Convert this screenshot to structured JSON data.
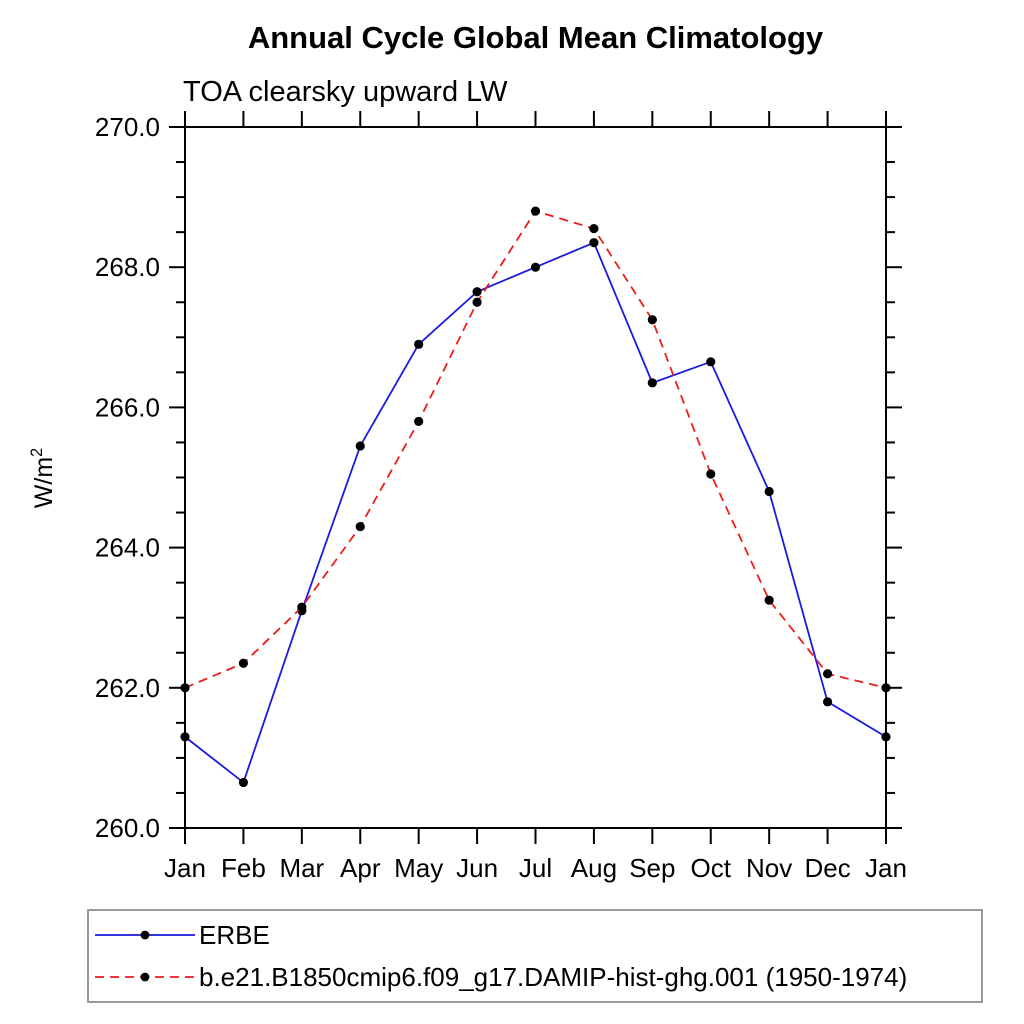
{
  "chart_data": {
    "type": "line",
    "title": "Annual Cycle Global Mean Climatology",
    "subtitle": "TOA clearsky upward LW",
    "ylabel": "W/m²",
    "xlabel": "",
    "x_tick_labels": [
      "Jan",
      "Feb",
      "Mar",
      "Apr",
      "May",
      "Jun",
      "Jul",
      "Aug",
      "Sep",
      "Oct",
      "Nov",
      "Dec",
      "Jan"
    ],
    "ylim": [
      260.0,
      270.0
    ],
    "y_major_ticks": [
      260.0,
      262.0,
      264.0,
      266.0,
      268.0,
      270.0
    ],
    "y_tick_labels": [
      "260.0",
      "262.0",
      "264.0",
      "266.0",
      "268.0",
      "270.0"
    ],
    "y_minor_step": 0.5,
    "grid": false,
    "frame_color": "#000000",
    "legend_position": "bottom-left-box",
    "legend_border_color": "#999999",
    "marker_color": "#000000",
    "series": [
      {
        "name": "ERBE",
        "color": "#1a1ae0",
        "line_style": "solid",
        "marker": "filled-circle",
        "values": [
          261.3,
          260.65,
          263.1,
          265.45,
          266.9,
          267.65,
          268.0,
          268.35,
          266.35,
          266.65,
          264.8,
          261.8,
          261.3
        ]
      },
      {
        "name": "b.e21.B1850cmip6.f09_g17.DAMIP-hist-ghg.001 (1950-1974)",
        "color": "#ee1c1c",
        "line_style": "dashed",
        "marker": "filled-circle",
        "values": [
          262.0,
          262.35,
          263.15,
          264.3,
          265.8,
          267.5,
          268.8,
          268.55,
          267.25,
          265.05,
          263.25,
          262.2,
          262.0
        ]
      }
    ]
  }
}
